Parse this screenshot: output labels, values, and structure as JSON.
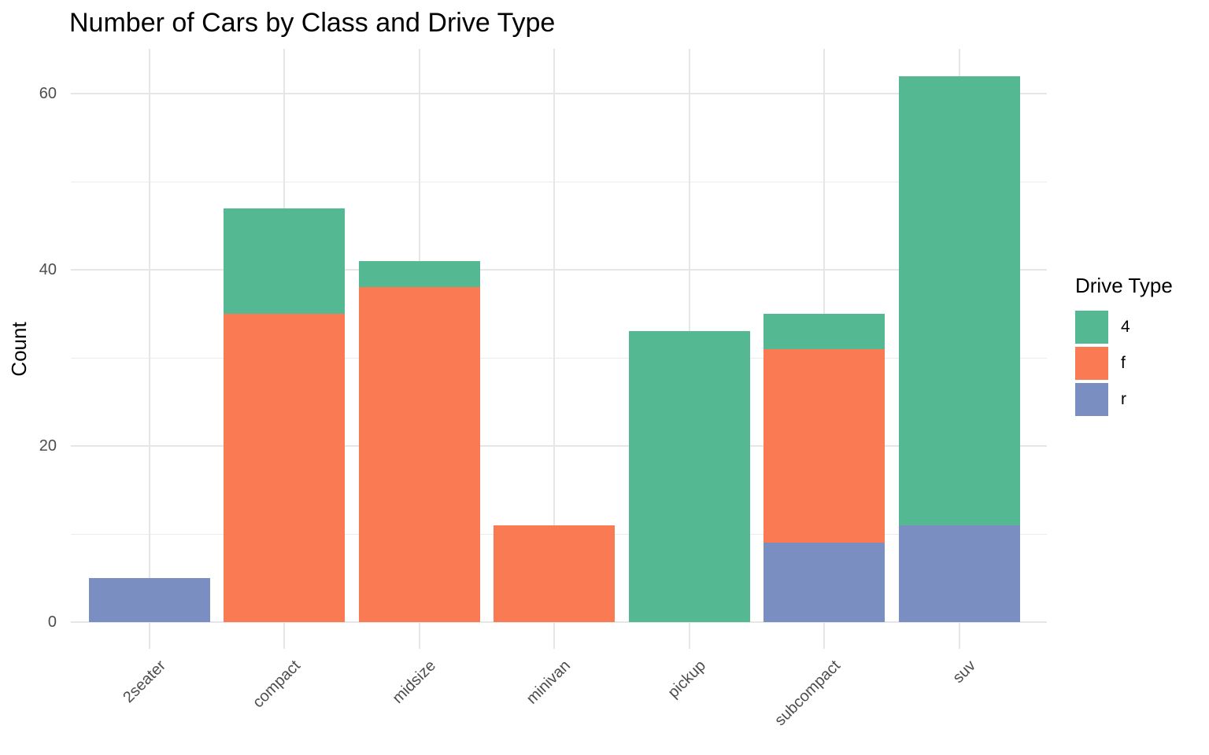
{
  "title": "Number of Cars by Class and Drive Type",
  "chart_data": {
    "type": "bar",
    "stacked": true,
    "title": "Number of Cars by Class and Drive Type",
    "xlabel": "",
    "ylabel": "Count",
    "categories": [
      "2seater",
      "compact",
      "midsize",
      "minivan",
      "pickup",
      "subcompact",
      "suv"
    ],
    "series": [
      {
        "name": "r",
        "color": "#7b8ec1",
        "values": [
          5,
          0,
          0,
          0,
          0,
          9,
          11
        ]
      },
      {
        "name": "f",
        "color": "#fa7b53",
        "values": [
          0,
          35,
          38,
          11,
          0,
          22,
          0
        ]
      },
      {
        "name": "4",
        "color": "#54b892",
        "values": [
          0,
          12,
          3,
          0,
          33,
          4,
          51
        ]
      }
    ],
    "stack_order_bottom_to_top": [
      "r",
      "f",
      "4"
    ],
    "totals": [
      5,
      47,
      41,
      11,
      33,
      35,
      62
    ],
    "y_ticks": [
      0,
      20,
      40,
      60
    ],
    "y_tick_labels": [
      "0",
      "20",
      "40",
      "60"
    ],
    "y_minor_ticks": [
      10,
      30,
      50
    ],
    "ylim": [
      0,
      65
    ],
    "grid": true,
    "legend": {
      "title": "Drive Type",
      "position": "right",
      "entries": [
        {
          "label": "4",
          "color": "#54b892"
        },
        {
          "label": "f",
          "color": "#fa7b53"
        },
        {
          "label": "r",
          "color": "#7b8ec1"
        }
      ]
    }
  }
}
